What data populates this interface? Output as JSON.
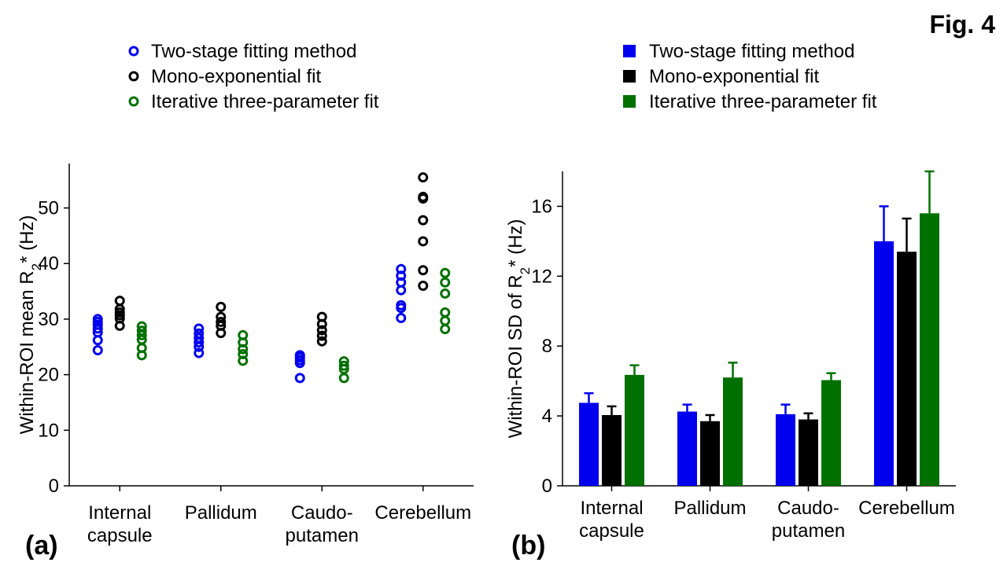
{
  "figure_label": "Fig. 4",
  "colors": {
    "two_stage": "#0000ee",
    "mono": "#000000",
    "iterative": "#007000",
    "axis": "#000000"
  },
  "panel_a": {
    "label": "(a)",
    "legend": [
      "Two-stage fitting method",
      "Mono-exponential fit",
      "Iterative three-parameter fit"
    ]
  },
  "panel_b": {
    "label": "(b)",
    "legend": [
      "Two-stage fitting method",
      "Mono-exponential fit",
      "Iterative three-parameter fit"
    ]
  },
  "chart_data": [
    {
      "type": "scatter",
      "title": "",
      "xlabel": "",
      "ylabel": "Within-ROI mean R",
      "ylabel_sub": "2",
      "ylabel_suffix": "* (Hz)",
      "ylim": [
        0,
        58
      ],
      "yticks": [
        0,
        10,
        20,
        30,
        40,
        50
      ],
      "categories": [
        [
          "Internal",
          "capsule"
        ],
        [
          "Pallidum"
        ],
        [
          "Caudo-",
          "putamen"
        ],
        [
          "Cerebellum"
        ]
      ],
      "grid": false,
      "legend_position": "top",
      "series": [
        {
          "name": "Two-stage fitting method",
          "values": [
            [
              30,
              29.5,
              29,
              28.3,
              27.6,
              26.2,
              24.4
            ],
            [
              28.3,
              27.4,
              26.6,
              25.8,
              25,
              23.9
            ],
            [
              23.5,
              23.1,
              22.6,
              22.1,
              19.4
            ],
            [
              39,
              37.8,
              36.6,
              35.2,
              32.5,
              32,
              30.2
            ]
          ]
        },
        {
          "name": "Mono-exponential fit",
          "values": [
            [
              33.3,
              31.8,
              31.2,
              30.7,
              30.1,
              28.8
            ],
            [
              32.2,
              30.4,
              29.5,
              28.8,
              27.5
            ],
            [
              30.4,
              29.1,
              28,
              26,
              27
            ],
            [
              55.5,
              52,
              51.7,
              47.8,
              44,
              38.8,
              36
            ]
          ]
        },
        {
          "name": "Iterative three-parameter fit",
          "values": [
            [
              28.7,
              27.9,
              27.1,
              26.3,
              24.8,
              23.5
            ],
            [
              27.1,
              25.8,
              24.6,
              23.7,
              22.5
            ],
            [
              22.4,
              21.6,
              21,
              19.4
            ],
            [
              38.3,
              36.6,
              34.6,
              31.2,
              29.7,
              28.2
            ]
          ]
        }
      ]
    },
    {
      "type": "bar",
      "title": "",
      "xlabel": "",
      "ylabel": "Within-ROI SD of R",
      "ylabel_sub": "2",
      "ylabel_suffix": "* (Hz)",
      "ylim": [
        0,
        18
      ],
      "yticks": [
        0,
        4,
        8,
        12,
        16
      ],
      "categories": [
        [
          "Internal",
          "capsule"
        ],
        [
          "Pallidum"
        ],
        [
          "Caudo-",
          "putamen"
        ],
        [
          "Cerebellum"
        ]
      ],
      "grid": false,
      "legend_position": "top",
      "series": [
        {
          "name": "Two-stage fitting method",
          "values": [
            4.75,
            4.25,
            4.1,
            14.0
          ],
          "errors": [
            0.55,
            0.4,
            0.55,
            2.0
          ]
        },
        {
          "name": "Mono-exponential fit",
          "values": [
            4.05,
            3.7,
            3.8,
            13.4
          ],
          "errors": [
            0.5,
            0.35,
            0.35,
            1.9
          ]
        },
        {
          "name": "Iterative three-parameter fit",
          "values": [
            6.35,
            6.2,
            6.05,
            15.6
          ],
          "errors": [
            0.55,
            0.85,
            0.4,
            2.4
          ]
        }
      ]
    }
  ]
}
